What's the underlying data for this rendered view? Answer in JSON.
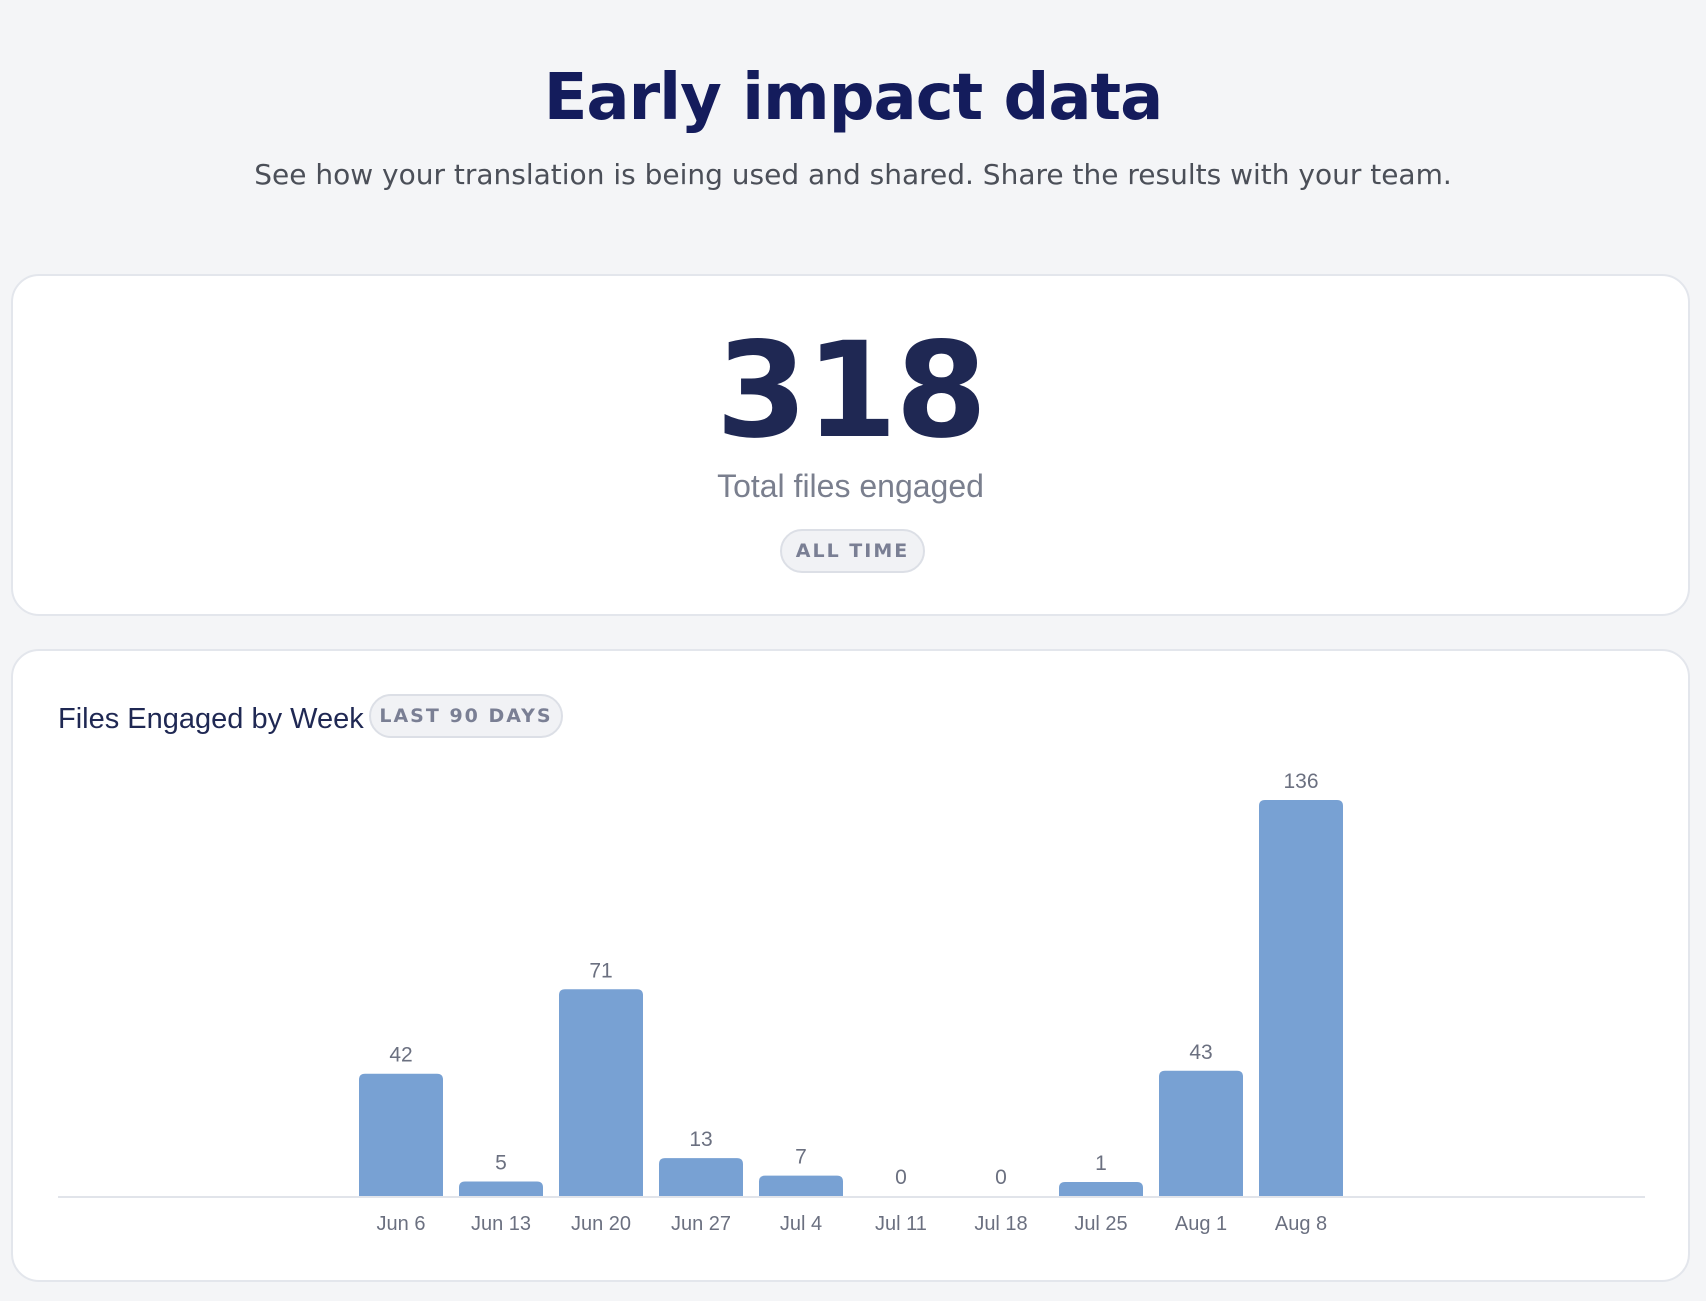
{
  "header": {
    "title": "Early impact data",
    "subtitle": "See how your translation is being used and shared. Share the results with your team."
  },
  "total": {
    "value": "318",
    "label": "Total files engaged",
    "period_badge": "ALL TIME"
  },
  "weekly": {
    "title": "Files Engaged by Week",
    "period_badge": "LAST 90 DAYS"
  },
  "colors": {
    "bar": "#78a1d3",
    "title": "#141c5c"
  },
  "chart_data": {
    "type": "bar",
    "title": "Files Engaged by Week",
    "xlabel": "",
    "ylabel": "",
    "categories": [
      "Jun 6",
      "Jun 13",
      "Jun 20",
      "Jun 27",
      "Jul 4",
      "Jul 11",
      "Jul 18",
      "Jul 25",
      "Aug 1",
      "Aug 8"
    ],
    "values": [
      42,
      5,
      71,
      13,
      7,
      0,
      0,
      1,
      43,
      136
    ],
    "ylim": [
      0,
      136
    ],
    "grid": false,
    "legend": "none"
  }
}
